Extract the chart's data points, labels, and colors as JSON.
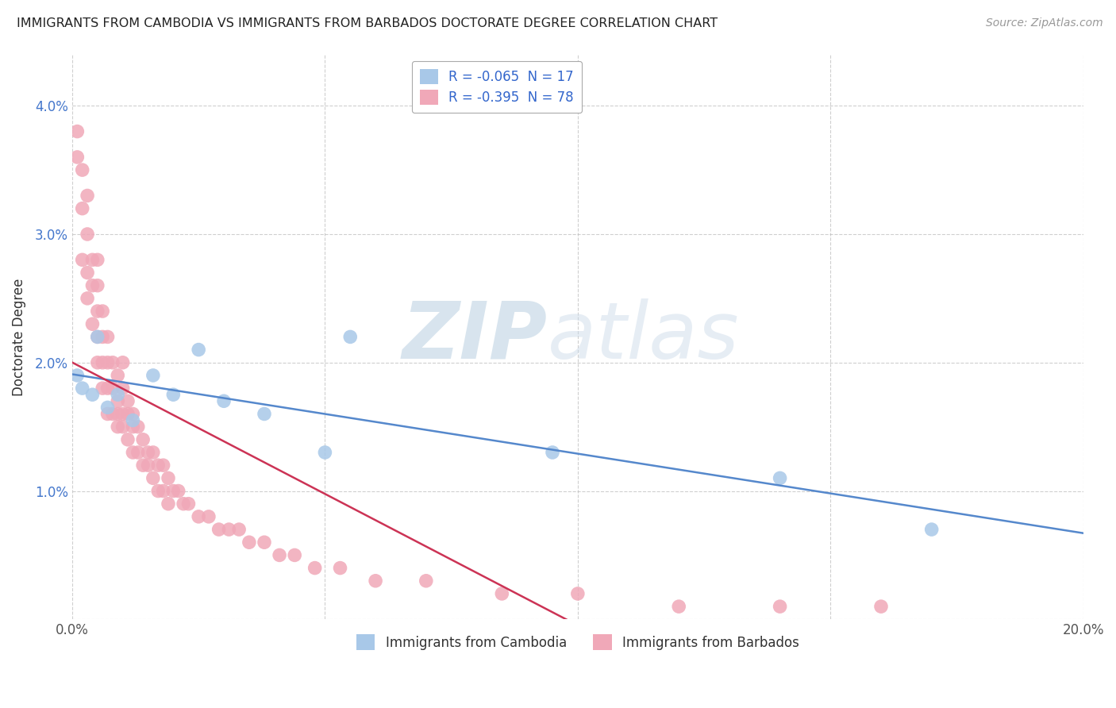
{
  "title": "IMMIGRANTS FROM CAMBODIA VS IMMIGRANTS FROM BARBADOS DOCTORATE DEGREE CORRELATION CHART",
  "source": "Source: ZipAtlas.com",
  "ylabel": "Doctorate Degree",
  "xlim": [
    0.0,
    0.2
  ],
  "ylim": [
    0.0,
    0.044
  ],
  "color_cambodia": "#a8c8e8",
  "color_barbados": "#f0a8b8",
  "line_color_cambodia": "#5588cc",
  "line_color_barbados": "#cc3355",
  "background_color": "#ffffff",
  "watermark_zip": "ZIP",
  "watermark_atlas": "atlas",
  "legend_r_cambodia": "R = -0.065",
  "legend_n_cambodia": "N = 17",
  "legend_r_barbados": "R = -0.395",
  "legend_n_barbados": "N = 78",
  "camb_x": [
    0.001,
    0.002,
    0.004,
    0.005,
    0.007,
    0.009,
    0.012,
    0.016,
    0.02,
    0.025,
    0.03,
    0.038,
    0.05,
    0.055,
    0.095,
    0.14,
    0.17
  ],
  "camb_y": [
    0.019,
    0.018,
    0.0175,
    0.022,
    0.0165,
    0.0175,
    0.0155,
    0.019,
    0.0175,
    0.021,
    0.017,
    0.016,
    0.013,
    0.022,
    0.013,
    0.011,
    0.007
  ],
  "barb_x": [
    0.001,
    0.001,
    0.002,
    0.002,
    0.002,
    0.003,
    0.003,
    0.003,
    0.003,
    0.004,
    0.004,
    0.004,
    0.005,
    0.005,
    0.005,
    0.005,
    0.006,
    0.006,
    0.006,
    0.006,
    0.007,
    0.007,
    0.007,
    0.007,
    0.008,
    0.008,
    0.008,
    0.009,
    0.009,
    0.009,
    0.009,
    0.01,
    0.01,
    0.01,
    0.011,
    0.011,
    0.011,
    0.012,
    0.012,
    0.012,
    0.013,
    0.013,
    0.014,
    0.014,
    0.015,
    0.015,
    0.016,
    0.016,
    0.017,
    0.017,
    0.018,
    0.018,
    0.019,
    0.019,
    0.02,
    0.021,
    0.022,
    0.023,
    0.025,
    0.027,
    0.029,
    0.031,
    0.033,
    0.035,
    0.038,
    0.041,
    0.044,
    0.048,
    0.053,
    0.06,
    0.07,
    0.085,
    0.1,
    0.12,
    0.14,
    0.16,
    0.005,
    0.01
  ],
  "barb_y": [
    0.038,
    0.036,
    0.035,
    0.032,
    0.028,
    0.033,
    0.03,
    0.027,
    0.025,
    0.028,
    0.026,
    0.023,
    0.026,
    0.024,
    0.022,
    0.02,
    0.024,
    0.022,
    0.02,
    0.018,
    0.022,
    0.02,
    0.018,
    0.016,
    0.02,
    0.018,
    0.016,
    0.019,
    0.017,
    0.016,
    0.015,
    0.018,
    0.016,
    0.015,
    0.017,
    0.016,
    0.014,
    0.016,
    0.015,
    0.013,
    0.015,
    0.013,
    0.014,
    0.012,
    0.013,
    0.012,
    0.013,
    0.011,
    0.012,
    0.01,
    0.012,
    0.01,
    0.011,
    0.009,
    0.01,
    0.01,
    0.009,
    0.009,
    0.008,
    0.008,
    0.007,
    0.007,
    0.007,
    0.006,
    0.006,
    0.005,
    0.005,
    0.004,
    0.004,
    0.003,
    0.003,
    0.002,
    0.002,
    0.001,
    0.001,
    0.001,
    0.028,
    0.02
  ]
}
